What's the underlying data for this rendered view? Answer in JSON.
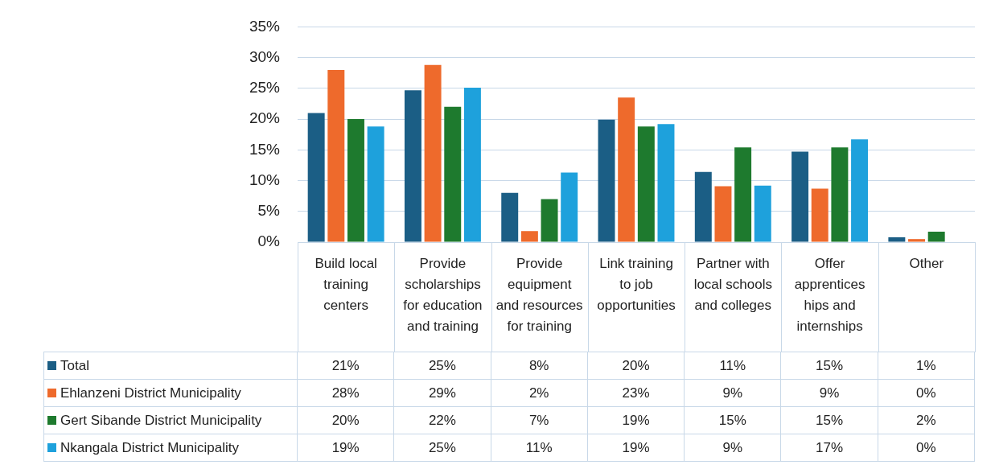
{
  "chart_data": {
    "type": "bar",
    "categories": [
      "Build local training centers",
      "Provide scholarships for education and training",
      "Provide equipment and resources for training",
      "Link training to job opportunities",
      "Partner with local schools and colleges",
      "Offer apprentices hips and internships",
      "Other"
    ],
    "series": [
      {
        "name": "Total",
        "color": "#1b5e85",
        "values": [
          21.0,
          24.7,
          8.0,
          19.9,
          11.4,
          14.7,
          0.8
        ],
        "value_labels": [
          "21%",
          "25%",
          "8%",
          "20%",
          "11%",
          "15%",
          "1%"
        ]
      },
      {
        "name": "Ehlanzeni District Municipality",
        "color": "#ee6a2c",
        "values": [
          28.0,
          28.8,
          1.8,
          23.5,
          9.1,
          8.7,
          0.5
        ],
        "value_labels": [
          "28%",
          "29%",
          "2%",
          "23%",
          "9%",
          "9%",
          "0%"
        ]
      },
      {
        "name": "Gert Sibande District Municipality",
        "color": "#1e7a2e",
        "values": [
          20.0,
          22.0,
          7.0,
          18.8,
          15.4,
          15.4,
          1.7
        ],
        "value_labels": [
          "20%",
          "22%",
          "7%",
          "19%",
          "15%",
          "15%",
          "2%"
        ]
      },
      {
        "name": "Nkangala District Municipality",
        "color": "#1ea1dc",
        "values": [
          18.8,
          25.1,
          11.3,
          19.2,
          9.2,
          16.7,
          0
        ],
        "value_labels": [
          "19%",
          "25%",
          "11%",
          "19%",
          "9%",
          "17%",
          "0%"
        ]
      }
    ],
    "ylim": [
      0,
      35
    ],
    "yticks": [
      {
        "value": 0,
        "label": "0%"
      },
      {
        "value": 5,
        "label": "5%"
      },
      {
        "value": 10,
        "label": "10%"
      },
      {
        "value": 15,
        "label": "15%"
      },
      {
        "value": 20,
        "label": "20%"
      },
      {
        "value": 25,
        "label": "25%"
      },
      {
        "value": 30,
        "label": "30%"
      },
      {
        "value": 35,
        "label": "35%"
      }
    ],
    "grid": "y",
    "legend": "bottom"
  }
}
